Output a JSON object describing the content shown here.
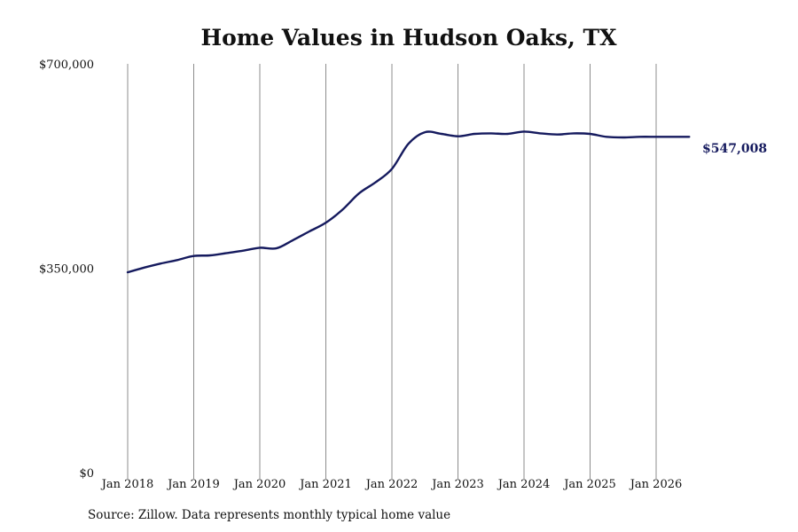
{
  "chart_data": {
    "type": "line",
    "title": "Home Values in Hudson Oaks, TX",
    "xlabel": "",
    "ylabel": "",
    "ylim": [
      0,
      700000
    ],
    "y_ticks": [
      0,
      350000,
      700000
    ],
    "y_tick_labels": [
      "$0",
      "$350,000",
      "$700,000"
    ],
    "x_ticks": [
      "2018-01",
      "2019-01",
      "2020-01",
      "2021-01",
      "2022-01",
      "2023-01",
      "2024-01",
      "2025-01",
      "2026-01"
    ],
    "x_tick_labels": [
      "Jan 2018",
      "Jan 2019",
      "Jan 2020",
      "Jan 2021",
      "Jan 2022",
      "Jan 2023",
      "Jan 2024",
      "Jan 2025",
      "Jan 2026"
    ],
    "grid": "vertical",
    "line_color": "#151a5e",
    "series": [
      {
        "x": [
          "2018-01",
          "2018-04",
          "2018-07",
          "2018-10",
          "2019-01",
          "2019-04",
          "2019-07",
          "2019-10",
          "2020-01",
          "2020-04",
          "2020-07",
          "2020-10",
          "2021-01",
          "2021-04",
          "2021-07",
          "2021-10",
          "2022-01",
          "2022-04",
          "2022-07",
          "2022-10",
          "2023-01",
          "2023-04",
          "2023-07",
          "2023-10",
          "2024-01",
          "2024-04",
          "2024-07",
          "2024-10",
          "2025-01",
          "2025-04",
          "2025-07",
          "2025-10",
          "2026-01",
          "2026-04",
          "2026-07"
        ],
        "values": [
          343000,
          351000,
          358000,
          364000,
          371000,
          372000,
          376000,
          380000,
          385000,
          384000,
          398000,
          413000,
          428000,
          450000,
          478000,
          497000,
          520000,
          563000,
          583000,
          580000,
          576000,
          580000,
          581000,
          580000,
          584000,
          581000,
          579000,
          581000,
          580000,
          575000,
          574000,
          575000,
          575000,
          575000,
          547008
        ]
      }
    ],
    "end_label": "$547,008",
    "source": "Source: Zillow. Data represents monthly typical home value"
  }
}
